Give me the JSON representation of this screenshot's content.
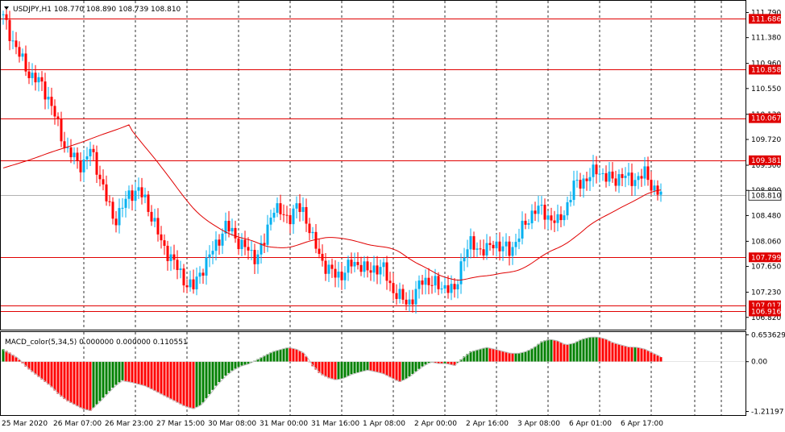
{
  "chart_data": [
    {
      "type": "candlestick",
      "title": "USDJPY,H1  108.770 108.890 108.739 108.810",
      "ylim": [
        106.62,
        111.98
      ],
      "y_ticks": [
        111.79,
        111.38,
        110.96,
        110.55,
        110.13,
        109.72,
        109.3,
        108.89,
        108.48,
        108.06,
        107.65,
        107.23,
        106.82
      ],
      "current_price": {
        "value": 108.81,
        "label": "108.810"
      },
      "levels": [
        {
          "value": 111.686,
          "label": "111.686"
        },
        {
          "value": 110.858,
          "label": "110.858"
        },
        {
          "value": 110.067,
          "label": "110.067"
        },
        {
          "value": 109.381,
          "label": "109.381"
        },
        {
          "value": 107.799,
          "label": "107.799"
        },
        {
          "value": 107.017,
          "label": "107.017"
        },
        {
          "value": 106.916,
          "label": "106.916"
        }
      ],
      "x_labels": [
        "25 Mar 2020",
        "26 Mar 07:00",
        "26 Mar 23:00",
        "27 Mar 15:00",
        "30 Mar 08:00",
        "31 Mar 00:00",
        "31 Mar 16:00",
        "1 Apr 08:00",
        "2 Apr 00:00",
        "2 Apr 16:00",
        "3 Apr 08:00",
        "6 Apr 01:00",
        "6 Apr 17:00"
      ],
      "close_path": [
        111.7,
        111.4,
        111.1,
        110.85,
        110.7,
        110.6,
        110.3,
        109.9,
        109.55,
        109.4,
        109.3,
        109.55,
        109.2,
        108.75,
        108.4,
        108.6,
        108.85,
        108.9,
        108.7,
        108.4,
        108.0,
        107.85,
        107.6,
        107.4,
        107.3,
        107.6,
        107.8,
        108.05,
        108.3,
        108.2,
        108.0,
        107.9,
        107.8,
        108.05,
        108.65,
        108.5,
        108.45,
        108.6,
        108.55,
        108.1,
        107.8,
        107.6,
        107.5,
        107.55,
        107.7,
        107.7,
        107.55,
        107.65,
        107.6,
        107.3,
        107.15,
        107.05,
        107.2,
        107.45,
        107.4,
        107.3,
        107.35,
        107.2,
        107.85,
        108.0,
        107.95,
        107.9,
        108.05,
        107.95,
        107.9,
        108.15,
        108.35,
        108.6,
        108.55,
        108.45,
        108.35,
        108.6,
        108.95,
        109.05,
        109.1,
        109.25,
        109.1,
        109.05,
        109.15,
        109.05,
        109.1,
        109.15,
        108.95,
        108.81
      ]
    },
    {
      "type": "bar",
      "title": "MACD_color(5,34,5) 0.000000 0.000000 0.110551",
      "ylim": [
        -1.3,
        0.72
      ],
      "y_ticks": [
        {
          "value": 0.653629,
          "label": "0.653629"
        },
        {
          "value": 0.0,
          "label": "0.00"
        },
        {
          "value": -1.21197,
          "label": "-1.21197"
        }
      ],
      "histogram_path": [
        0.3,
        0.2,
        0.05,
        -0.15,
        -0.3,
        -0.45,
        -0.6,
        -0.8,
        -0.95,
        -1.05,
        -1.15,
        -1.2,
        -1.0,
        -0.8,
        -0.6,
        -0.45,
        -0.5,
        -0.55,
        -0.6,
        -0.7,
        -0.8,
        -0.9,
        -1.0,
        -1.1,
        -1.15,
        -1.05,
        -0.8,
        -0.55,
        -0.35,
        -0.2,
        -0.1,
        -0.05,
        0.05,
        0.15,
        0.25,
        0.3,
        0.35,
        0.3,
        0.2,
        -0.1,
        -0.3,
        -0.4,
        -0.45,
        -0.4,
        -0.3,
        -0.25,
        -0.2,
        -0.25,
        -0.3,
        -0.4,
        -0.5,
        -0.4,
        -0.25,
        -0.1,
        0.0,
        -0.05,
        -0.05,
        -0.1,
        0.1,
        0.25,
        0.3,
        0.35,
        0.3,
        0.25,
        0.2,
        0.2,
        0.25,
        0.35,
        0.5,
        0.55,
        0.5,
        0.4,
        0.45,
        0.55,
        0.6,
        0.6,
        0.55,
        0.45,
        0.4,
        0.35,
        0.35,
        0.3,
        0.2,
        0.11
      ]
    }
  ]
}
